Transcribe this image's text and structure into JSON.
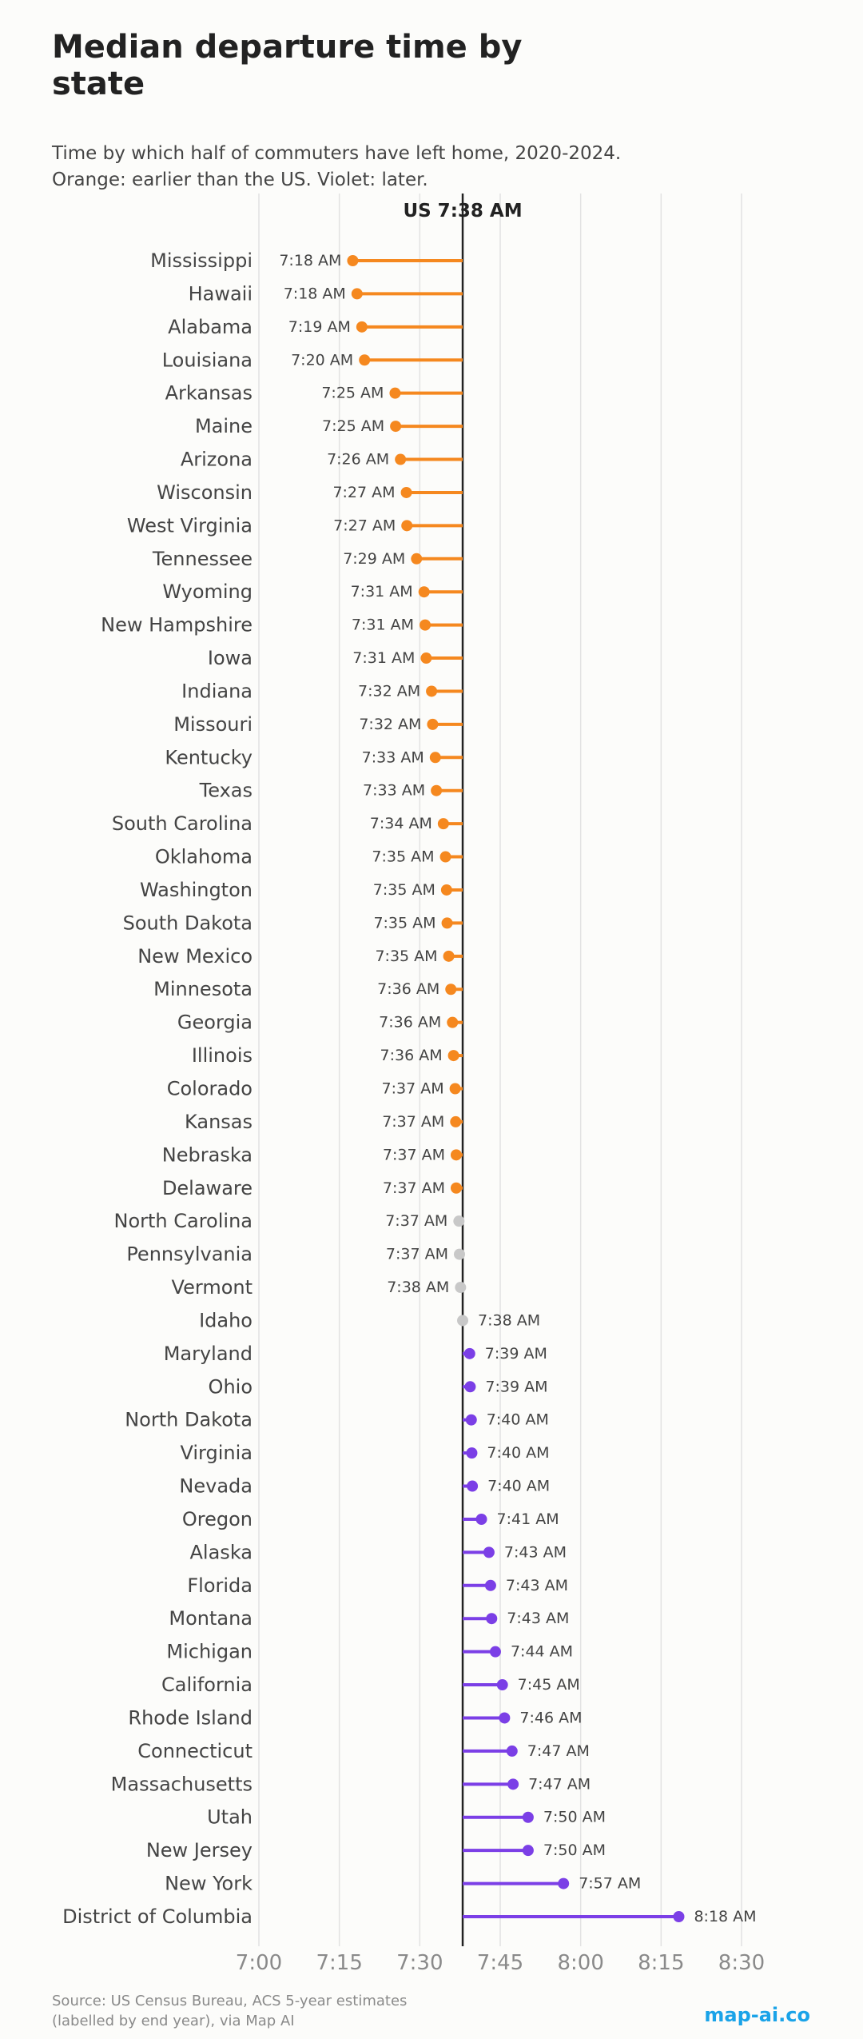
{
  "title": "Median departure time by state",
  "subtitle_lines": [
    "Time by which half of commuters have left home, 2020-2024.",
    "Orange: earlier than the US. Violet: later."
  ],
  "source_lines": [
    "Source: US Census Bureau, ACS 5-year estimates",
    "(labelled by end year), via Map AI"
  ],
  "brand": "map-ai.co",
  "colors": {
    "earlier": "#f5881f",
    "later": "#7b3fe6",
    "same": "#c8c8c8",
    "reference_line": "#222222",
    "grid": "#e2e2e2"
  },
  "chart_data": {
    "type": "dot",
    "reference": {
      "label": "US 7:38 AM",
      "value": 458
    },
    "x_unit": "minutes after midnight",
    "xlim": [
      420,
      510
    ],
    "x_ticks": [
      {
        "value": 420,
        "label": "7:00"
      },
      {
        "value": 435,
        "label": "7:15"
      },
      {
        "value": 450,
        "label": "7:30"
      },
      {
        "value": 465,
        "label": "7:45"
      },
      {
        "value": 480,
        "label": "8:00"
      },
      {
        "value": 495,
        "label": "8:15"
      },
      {
        "value": 510,
        "label": "8:30"
      }
    ],
    "grid": true,
    "rows": [
      {
        "state": "Mississippi",
        "value": 437.5,
        "label": "7:18 AM",
        "group": "earlier"
      },
      {
        "state": "Hawaii",
        "value": 438.3,
        "label": "7:18 AM",
        "group": "earlier"
      },
      {
        "state": "Alabama",
        "value": 439.2,
        "label": "7:19 AM",
        "group": "earlier"
      },
      {
        "state": "Louisiana",
        "value": 439.7,
        "label": "7:20 AM",
        "group": "earlier"
      },
      {
        "state": "Arkansas",
        "value": 445.4,
        "label": "7:25 AM",
        "group": "earlier"
      },
      {
        "state": "Maine",
        "value": 445.5,
        "label": "7:25 AM",
        "group": "earlier"
      },
      {
        "state": "Arizona",
        "value": 446.4,
        "label": "7:26 AM",
        "group": "earlier"
      },
      {
        "state": "Wisconsin",
        "value": 447.5,
        "label": "7:27 AM",
        "group": "earlier"
      },
      {
        "state": "West Virginia",
        "value": 447.6,
        "label": "7:27 AM",
        "group": "earlier"
      },
      {
        "state": "Tennessee",
        "value": 449.4,
        "label": "7:29 AM",
        "group": "earlier"
      },
      {
        "state": "Wyoming",
        "value": 450.8,
        "label": "7:31 AM",
        "group": "earlier"
      },
      {
        "state": "New Hampshire",
        "value": 451.0,
        "label": "7:31 AM",
        "group": "earlier"
      },
      {
        "state": "Iowa",
        "value": 451.2,
        "label": "7:31 AM",
        "group": "earlier"
      },
      {
        "state": "Indiana",
        "value": 452.2,
        "label": "7:32 AM",
        "group": "earlier"
      },
      {
        "state": "Missouri",
        "value": 452.4,
        "label": "7:32 AM",
        "group": "earlier"
      },
      {
        "state": "Kentucky",
        "value": 452.9,
        "label": "7:33 AM",
        "group": "earlier"
      },
      {
        "state": "Texas",
        "value": 453.1,
        "label": "7:33 AM",
        "group": "earlier"
      },
      {
        "state": "South Carolina",
        "value": 454.4,
        "label": "7:34 AM",
        "group": "earlier"
      },
      {
        "state": "Oklahoma",
        "value": 454.8,
        "label": "7:35 AM",
        "group": "earlier"
      },
      {
        "state": "Washington",
        "value": 455.0,
        "label": "7:35 AM",
        "group": "earlier"
      },
      {
        "state": "South Dakota",
        "value": 455.1,
        "label": "7:35 AM",
        "group": "earlier"
      },
      {
        "state": "New Mexico",
        "value": 455.4,
        "label": "7:35 AM",
        "group": "earlier"
      },
      {
        "state": "Minnesota",
        "value": 455.8,
        "label": "7:36 AM",
        "group": "earlier"
      },
      {
        "state": "Georgia",
        "value": 456.1,
        "label": "7:36 AM",
        "group": "earlier"
      },
      {
        "state": "Illinois",
        "value": 456.3,
        "label": "7:36 AM",
        "group": "earlier"
      },
      {
        "state": "Colorado",
        "value": 456.6,
        "label": "7:37 AM",
        "group": "earlier"
      },
      {
        "state": "Kansas",
        "value": 456.7,
        "label": "7:37 AM",
        "group": "earlier"
      },
      {
        "state": "Nebraska",
        "value": 456.8,
        "label": "7:37 AM",
        "group": "earlier"
      },
      {
        "state": "Delaware",
        "value": 456.8,
        "label": "7:37 AM",
        "group": "earlier"
      },
      {
        "state": "North Carolina",
        "value": 457.3,
        "label": "7:37 AM",
        "group": "same"
      },
      {
        "state": "Pennsylvania",
        "value": 457.4,
        "label": "7:37 AM",
        "group": "same"
      },
      {
        "state": "Vermont",
        "value": 457.6,
        "label": "7:38 AM",
        "group": "same"
      },
      {
        "state": "Idaho",
        "value": 458.0,
        "label": "7:38 AM",
        "group": "same"
      },
      {
        "state": "Maryland",
        "value": 459.3,
        "label": "7:39 AM",
        "group": "later"
      },
      {
        "state": "Ohio",
        "value": 459.4,
        "label": "7:39 AM",
        "group": "later"
      },
      {
        "state": "North Dakota",
        "value": 459.6,
        "label": "7:40 AM",
        "group": "later"
      },
      {
        "state": "Virginia",
        "value": 459.7,
        "label": "7:40 AM",
        "group": "later"
      },
      {
        "state": "Nevada",
        "value": 459.8,
        "label": "7:40 AM",
        "group": "later"
      },
      {
        "state": "Oregon",
        "value": 461.5,
        "label": "7:41 AM",
        "group": "later"
      },
      {
        "state": "Alaska",
        "value": 462.9,
        "label": "7:43 AM",
        "group": "later"
      },
      {
        "state": "Florida",
        "value": 463.2,
        "label": "7:43 AM",
        "group": "later"
      },
      {
        "state": "Montana",
        "value": 463.4,
        "label": "7:43 AM",
        "group": "later"
      },
      {
        "state": "Michigan",
        "value": 464.1,
        "label": "7:44 AM",
        "group": "later"
      },
      {
        "state": "California",
        "value": 465.4,
        "label": "7:45 AM",
        "group": "later"
      },
      {
        "state": "Rhode Island",
        "value": 465.8,
        "label": "7:46 AM",
        "group": "later"
      },
      {
        "state": "Connecticut",
        "value": 467.2,
        "label": "7:47 AM",
        "group": "later"
      },
      {
        "state": "Massachusetts",
        "value": 467.4,
        "label": "7:47 AM",
        "group": "later"
      },
      {
        "state": "Utah",
        "value": 470.2,
        "label": "7:50 AM",
        "group": "later"
      },
      {
        "state": "New Jersey",
        "value": 470.2,
        "label": "7:50 AM",
        "group": "later"
      },
      {
        "state": "New York",
        "value": 476.8,
        "label": "7:57 AM",
        "group": "later"
      },
      {
        "state": "District of Columbia",
        "value": 498.3,
        "label": "8:18 AM",
        "group": "later"
      }
    ]
  }
}
